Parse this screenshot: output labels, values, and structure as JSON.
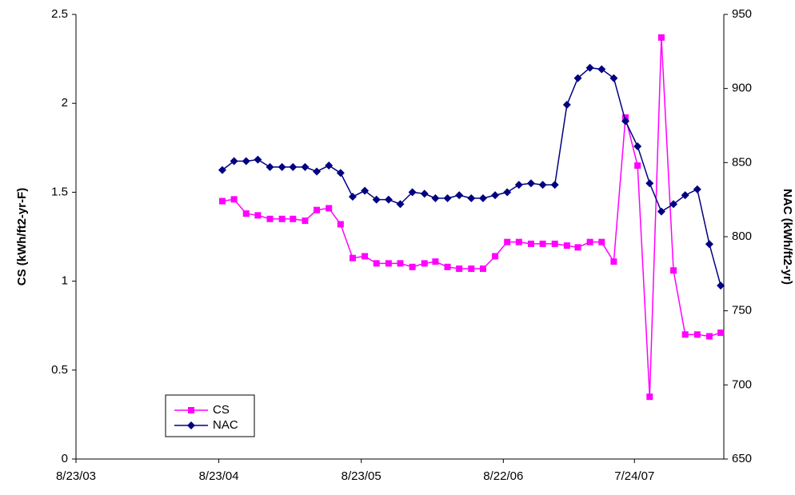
{
  "chart_data": {
    "type": "line",
    "x": [
      "9/1/04",
      "10/1/04",
      "11/1/04",
      "12/1/04",
      "1/1/05",
      "2/1/05",
      "3/1/05",
      "4/1/05",
      "5/1/05",
      "6/1/05",
      "7/1/05",
      "8/1/05",
      "9/1/05",
      "10/1/05",
      "11/1/05",
      "12/1/05",
      "1/1/06",
      "2/1/06",
      "3/1/06",
      "4/1/06",
      "5/1/06",
      "6/1/06",
      "7/1/06",
      "8/1/06",
      "9/1/06",
      "10/1/06",
      "11/1/06",
      "12/1/06",
      "1/1/07",
      "2/1/07",
      "3/1/07",
      "4/1/07",
      "5/1/07",
      "6/1/07",
      "7/1/07",
      "8/1/07",
      "9/1/07",
      "10/1/07",
      "11/1/07",
      "12/1/07",
      "1/1/08",
      "2/1/08",
      "3/1/08"
    ],
    "series": [
      {
        "name": "CS",
        "color": "#ff00ff",
        "marker": "square",
        "axis": "y",
        "values": [
          1.45,
          1.46,
          1.38,
          1.37,
          1.35,
          1.35,
          1.35,
          1.34,
          1.4,
          1.41,
          1.32,
          1.13,
          1.14,
          1.1,
          1.1,
          1.1,
          1.08,
          1.1,
          1.11,
          1.08,
          1.07,
          1.07,
          1.07,
          1.14,
          1.22,
          1.22,
          1.21,
          1.21,
          1.21,
          1.2,
          1.19,
          1.22,
          1.22,
          1.11,
          1.92,
          1.65,
          0.35,
          2.37,
          1.06,
          0.7,
          0.7,
          0.69,
          0.71
        ]
      },
      {
        "name": "NAC",
        "color": "#000080",
        "marker": "diamond",
        "axis": "y2",
        "values": [
          845,
          851,
          851,
          852,
          847,
          847,
          847,
          847,
          844,
          848,
          843,
          827,
          831,
          825,
          825,
          822,
          830,
          829,
          826,
          826,
          828,
          826,
          826,
          828,
          830,
          835,
          836,
          835,
          835,
          889,
          907,
          914,
          913,
          907,
          878,
          861,
          836,
          817,
          822,
          828,
          832,
          795,
          767
        ]
      }
    ],
    "xlim": [
      "8/23/03",
      "3/9/08"
    ],
    "xticks": [
      "8/23/03",
      "8/23/04",
      "8/23/05",
      "8/22/06",
      "7/24/07"
    ],
    "ylabel": "CS (kWh/ft2-yr-F)",
    "ylim": [
      0,
      2.5
    ],
    "yticks": [
      0,
      {
        "value": 0.5,
        "label": "0.5"
      },
      1,
      {
        "value": 1.5,
        "label": "1.5"
      },
      2,
      {
        "value": 2.5,
        "label": "2.5"
      }
    ],
    "y2label": "NAC (kWh/ft2-yr)",
    "y2lim": [
      650,
      950
    ],
    "y2ticks": [
      650,
      700,
      750,
      800,
      850,
      900,
      950
    ],
    "legend": "lower left",
    "grid": false
  }
}
